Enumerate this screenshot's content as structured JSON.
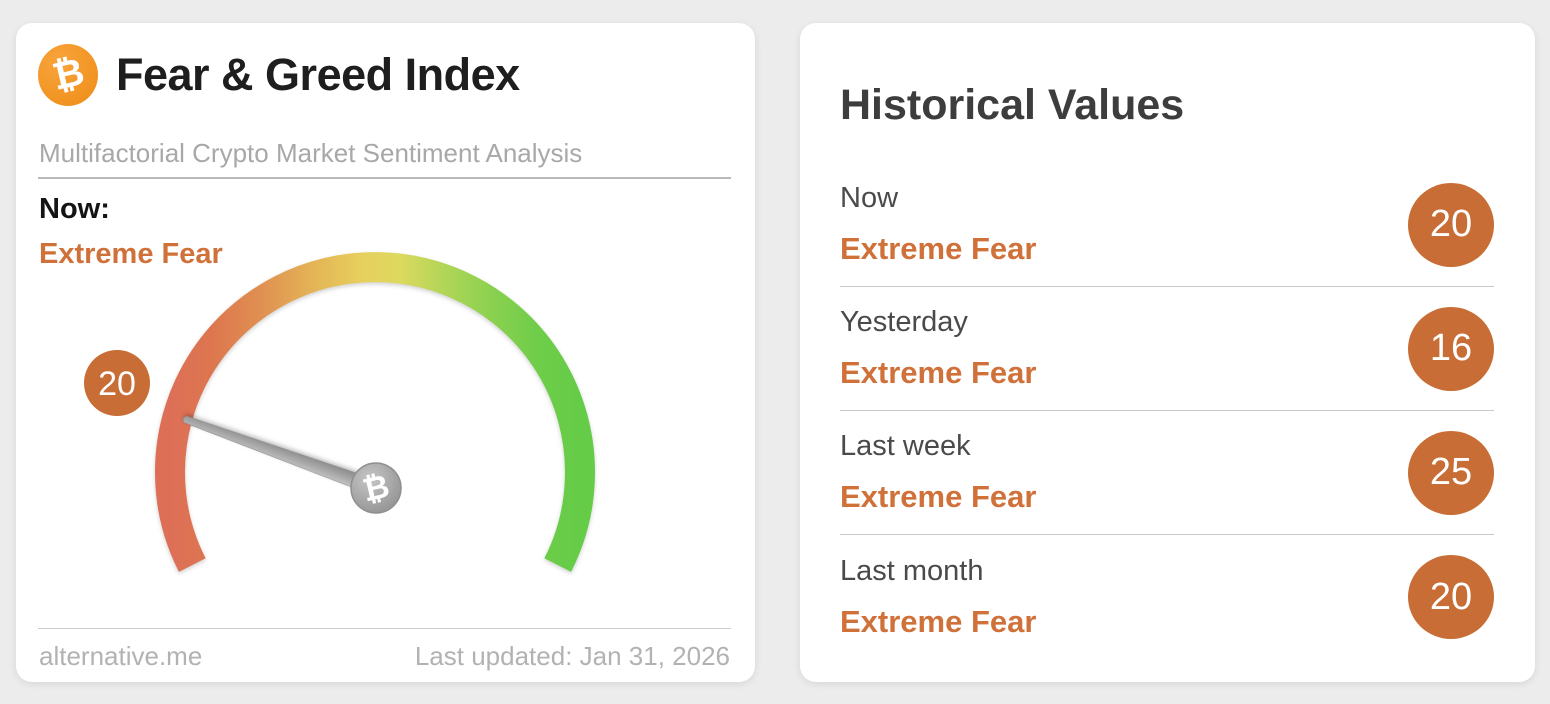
{
  "gauge_card": {
    "title": "Fear & Greed Index",
    "subtitle": "Multifactorial Crypto Market Sentiment Analysis",
    "bitcoin_symbol": "₿",
    "now_label": "Now:",
    "now_sentiment": "Extreme Fear",
    "value": "20",
    "source": "alternative.me",
    "last_updated": "Last updated: Jan 31, 2026"
  },
  "historical_card": {
    "title": "Historical Values",
    "rows": [
      {
        "label": "Now",
        "sentiment": "Extreme Fear",
        "value": "20"
      },
      {
        "label": "Yesterday",
        "sentiment": "Extreme Fear",
        "value": "16"
      },
      {
        "label": "Last week",
        "sentiment": "Extreme Fear",
        "value": "25"
      },
      {
        "label": "Last month",
        "sentiment": "Extreme Fear",
        "value": "20"
      }
    ]
  },
  "colors": {
    "accent_orange_badge": "#c76d35",
    "accent_orange_text": "#d0713a",
    "bitcoin_orange": "#f19221",
    "gauge_red": "#dd6f57",
    "gauge_yellow": "#e7d05e",
    "gauge_green": "#65cc47",
    "needle_gray": "#9b9b9b",
    "page_background": "#ececec"
  },
  "chart_data": {
    "type": "gauge",
    "title": "Fear & Greed Index",
    "subtitle": "Multifactorial Crypto Market Sentiment Analysis",
    "value": 20,
    "value_label": "Extreme Fear",
    "range": [
      0,
      100
    ],
    "arc_sweep_degrees": 234,
    "scale_colors": [
      "#dd6f57",
      "#e7d05e",
      "#65cc47"
    ],
    "last_updated": "Jan 31, 2026",
    "source": "alternative.me",
    "historical": [
      {
        "period": "Now",
        "value": 20,
        "classification": "Extreme Fear"
      },
      {
        "period": "Yesterday",
        "value": 16,
        "classification": "Extreme Fear"
      },
      {
        "period": "Last week",
        "value": 25,
        "classification": "Extreme Fear"
      },
      {
        "period": "Last month",
        "value": 20,
        "classification": "Extreme Fear"
      }
    ]
  }
}
